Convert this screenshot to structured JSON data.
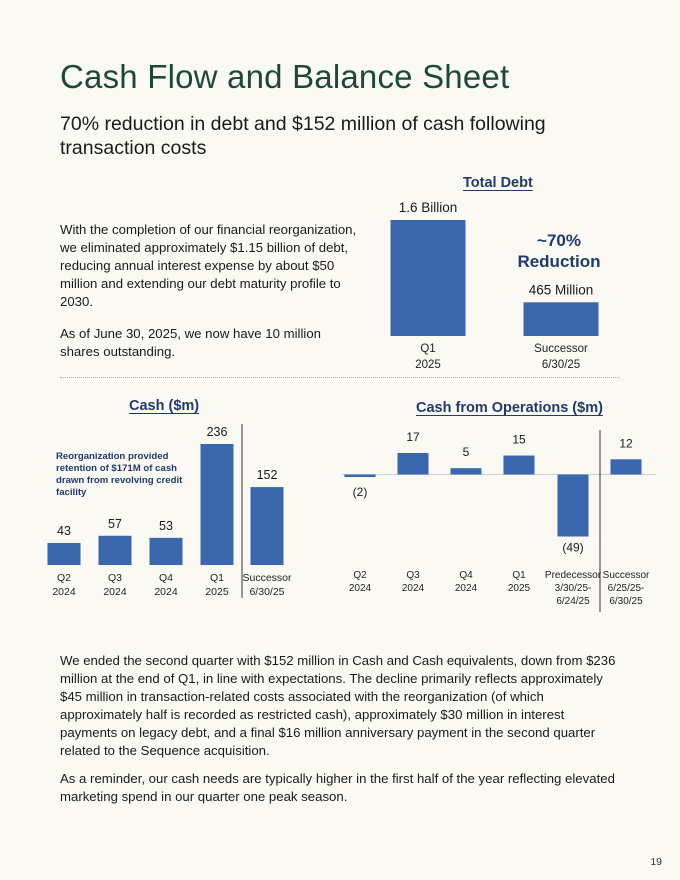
{
  "title": "Cash Flow and Balance Sheet",
  "subtitle": "70% reduction in debt and $152 million of cash following transaction costs",
  "intro_paragraphs": [
    "With the completion of our financial reorganization, we eliminated approximately $1.15 billion of debt, reducing annual interest expense by about $50 million and extending our debt maturity profile to 2030.",
    "As of June 30, 2025, we now have 10 million shares outstanding."
  ],
  "reduction_callout": {
    "line1": "~70%",
    "line2": "Reduction"
  },
  "cash_note": "Reorganization provided retention of $171M of cash drawn from revolving credit facility",
  "bottom_paragraphs": [
    "We ended the second quarter with $152 million in Cash and Cash equivalents, down from $236 million at the end of Q1, in line with expectations. The decline primarily reflects approximately $45 million in transaction-related costs associated with the reorganization (of which approximately half is recorded as restricted cash), approximately $30 million in interest payments on legacy debt, and a final $16 million anniversary payment in the second quarter related to the Sequence acquisition.",
    "As a reminder, our cash needs are typically higher in the first half of the year reflecting elevated marketing spend in our quarter one peak season."
  ],
  "page_number": "19",
  "colors": {
    "bar": "#3b68ad",
    "title_green": "#1d4a38",
    "navy": "#1f3a6e"
  },
  "chart_data": [
    {
      "id": "total_debt",
      "type": "bar",
      "title": "Total Debt",
      "categories": [
        [
          "Q1",
          "2025"
        ],
        [
          "Successor",
          "6/30/25"
        ]
      ],
      "values": [
        1600,
        465
      ],
      "value_labels": [
        "1.6 Billion",
        "465 Million"
      ],
      "unit": "$ millions",
      "ylim": [
        0,
        1600
      ]
    },
    {
      "id": "cash",
      "type": "bar",
      "title": "Cash ($m)",
      "categories": [
        [
          "Q2",
          "2024"
        ],
        [
          "Q3",
          "2024"
        ],
        [
          "Q4",
          "2024"
        ],
        [
          "Q1",
          "2025"
        ],
        [
          "Successor",
          "6/30/25"
        ]
      ],
      "values": [
        43,
        57,
        53,
        236,
        152
      ],
      "value_labels": [
        "43",
        "57",
        "53",
        "236",
        "152"
      ],
      "ylim": [
        0,
        236
      ],
      "divider_after_index": 3
    },
    {
      "id": "cfo",
      "type": "bar",
      "title": "Cash from Operations ($m)",
      "categories": [
        [
          "Q2",
          "2024"
        ],
        [
          "Q3",
          "2024"
        ],
        [
          "Q4",
          "2024"
        ],
        [
          "Q1",
          "2025"
        ],
        [
          "Predecessor",
          "3/30/25-",
          "6/24/25"
        ],
        [
          "Successor",
          "6/25/25-",
          "6/30/25"
        ]
      ],
      "values": [
        -2,
        17,
        5,
        15,
        -49,
        12
      ],
      "value_labels": [
        "(2)",
        "17",
        "5",
        "15",
        "(49)",
        "12"
      ],
      "ylim": [
        -49,
        17
      ],
      "divider_after_index": 4
    }
  ]
}
